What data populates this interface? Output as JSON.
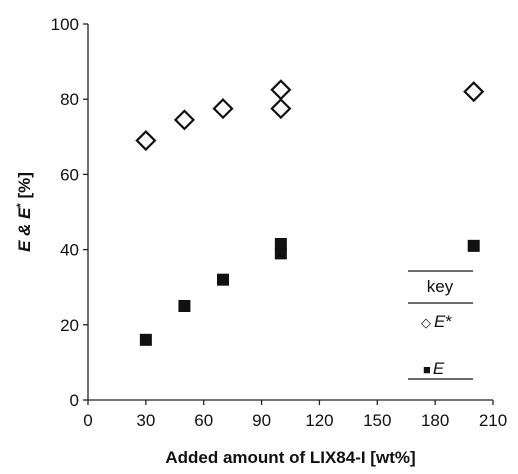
{
  "chart_data": {
    "type": "scatter",
    "xlabel": "Added amount of LIX84-I [wt%]",
    "ylabel": {
      "prefix": "E & E",
      "superscript": "*",
      "suffix": " [%]"
    },
    "xlim": [
      0,
      210
    ],
    "ylim": [
      0,
      100
    ],
    "x_ticks": [
      0,
      30,
      60,
      90,
      120,
      150,
      180,
      210
    ],
    "y_ticks": [
      0,
      20,
      40,
      60,
      80,
      100
    ],
    "grid": false,
    "legend": {
      "placement": "bottom-right",
      "title": "key",
      "entries": [
        {
          "symbol": "◇",
          "name_italic": "E",
          "name_suffix": "*"
        },
        {
          "symbol": "■",
          "name_italic": "E",
          "name_suffix": ""
        }
      ]
    },
    "series": [
      {
        "name": "E*",
        "marker": "open-diamond",
        "color": "#111111",
        "points": [
          {
            "x": 30,
            "y": 69
          },
          {
            "x": 50,
            "y": 74.5
          },
          {
            "x": 70,
            "y": 77.5
          },
          {
            "x": 100,
            "y": 77.5
          },
          {
            "x": 100,
            "y": 82.5
          },
          {
            "x": 200,
            "y": 82
          }
        ]
      },
      {
        "name": "E",
        "marker": "filled-square",
        "color": "#111111",
        "points": [
          {
            "x": 30,
            "y": 16
          },
          {
            "x": 50,
            "y": 25
          },
          {
            "x": 70,
            "y": 32
          },
          {
            "x": 100,
            "y": 39
          },
          {
            "x": 100,
            "y": 41.5
          },
          {
            "x": 200,
            "y": 41
          }
        ]
      }
    ]
  }
}
